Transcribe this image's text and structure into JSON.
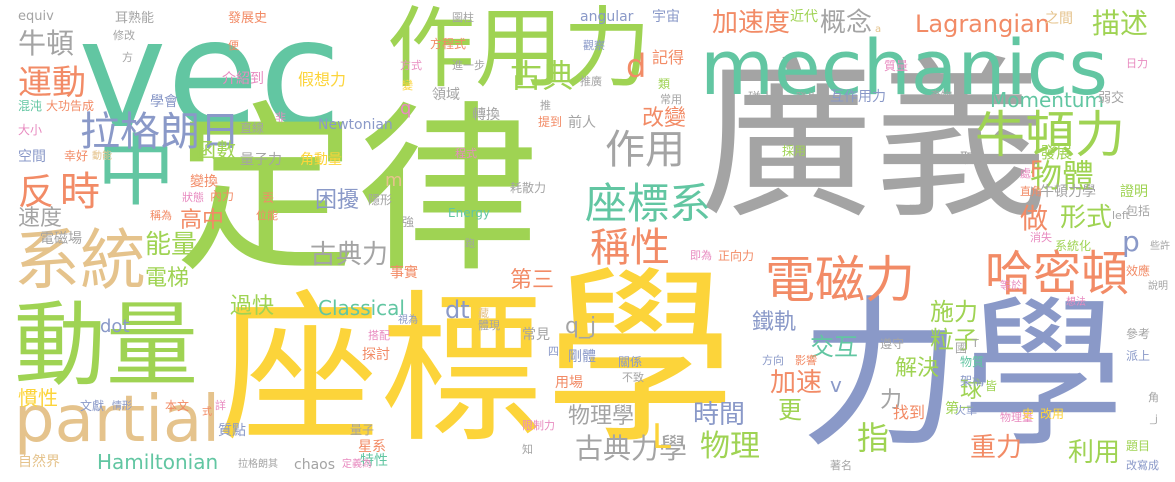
{
  "palette": {
    "green": "#9fd353",
    "yellow": "#fcd43a",
    "gray": "#a4a4a4",
    "slate": "#8a99c8",
    "teal": "#62c6a2",
    "orange": "#f28b66",
    "tan": "#e5c38c",
    "pink": "#e88bc0",
    "lime": "#a8d55b"
  },
  "words": [
    {
      "text": "vec",
      "color": "#62c6a2"
    },
    {
      "text": "定律",
      "color": "#9fd353"
    },
    {
      "text": "廣義",
      "color": "#a4a4a4"
    },
    {
      "text": "座標",
      "color": "#fcd43a"
    },
    {
      "text": "學",
      "color": "#fcd43a"
    },
    {
      "text": "力學",
      "color": "#8a99c8"
    },
    {
      "text": "作用力",
      "color": "#9fd353"
    },
    {
      "text": "mechanics",
      "color": "#62c6a2"
    },
    {
      "text": "動量",
      "color": "#9fd353"
    },
    {
      "text": "partial",
      "color": "#e5c38c"
    },
    {
      "text": "中",
      "color": "#62c6a2"
    },
    {
      "text": "系統",
      "color": "#e5c38c"
    },
    {
      "text": "牛頓力",
      "color": "#9fd353"
    },
    {
      "text": "哈密頓",
      "color": "#f28b66"
    },
    {
      "text": "電磁力",
      "color": "#f28b66"
    },
    {
      "text": "座標系",
      "color": "#62c6a2"
    },
    {
      "text": "稱性",
      "color": "#f28b66"
    },
    {
      "text": "作用",
      "color": "#a4a4a4"
    },
    {
      "text": "拉格朗日",
      "color": "#8a99c8"
    },
    {
      "text": "物體",
      "color": "#9fd353"
    },
    {
      "text": "古典力學",
      "color": "#a4a4a4"
    },
    {
      "text": "物理",
      "color": "#9fd353"
    },
    {
      "text": "時",
      "color": "#f28b66"
    },
    {
      "text": "反",
      "color": "#f28b66"
    },
    {
      "text": "運動",
      "color": "#f28b66"
    },
    {
      "text": "牛頓",
      "color": "#a4a4a4"
    },
    {
      "text": "古典",
      "color": "#9fd353"
    },
    {
      "text": "加速度",
      "color": "#f28b66"
    },
    {
      "text": "概念",
      "color": "#a4a4a4"
    },
    {
      "text": "Lagrangian",
      "color": "#f28b66"
    },
    {
      "text": "描述",
      "color": "#9fd353"
    },
    {
      "text": "d",
      "color": "#f28b66"
    },
    {
      "text": "Momentum",
      "color": "#62c6a2"
    },
    {
      "text": "Hamiltonian",
      "color": "#62c6a2"
    },
    {
      "text": "Classical",
      "color": "#62c6a2"
    },
    {
      "text": "利用",
      "color": "#9fd353"
    },
    {
      "text": "重力",
      "color": "#f28b66"
    },
    {
      "text": "時間",
      "color": "#8a99c8"
    },
    {
      "text": "指",
      "color": "#9fd353"
    },
    {
      "text": "加速",
      "color": "#f28b66"
    },
    {
      "text": "能量",
      "color": "#9fd353"
    },
    {
      "text": "古典力",
      "color": "#a4a4a4"
    },
    {
      "text": "速度",
      "color": "#a4a4a4"
    },
    {
      "text": "形式",
      "color": "#9fd353"
    },
    {
      "text": "做",
      "color": "#f28b66"
    },
    {
      "text": "F",
      "color": "#f28b66"
    },
    {
      "text": "p",
      "color": "#8a99c8"
    },
    {
      "text": "施力",
      "color": "#9fd353"
    },
    {
      "text": "粒子",
      "color": "#9fd353"
    },
    {
      "text": "解決",
      "color": "#9fd353"
    },
    {
      "text": "交互",
      "color": "#62c6a2"
    },
    {
      "text": "鐵軌",
      "color": "#8a99c8"
    },
    {
      "text": "改變",
      "color": "#f28b66"
    },
    {
      "text": "函數",
      "color": "#9fd353"
    },
    {
      "text": "困擾",
      "color": "#8a99c8"
    },
    {
      "text": "高中",
      "color": "#f28b66"
    },
    {
      "text": "電梯",
      "color": "#9fd353"
    },
    {
      "text": "過快",
      "color": "#9fd353"
    },
    {
      "text": "慣性",
      "color": "#fcd43a"
    },
    {
      "text": "物理學",
      "color": "#a4a4a4"
    },
    {
      "text": "第三",
      "color": "#f28b66"
    },
    {
      "text": "dt",
      "color": "#8a99c8"
    },
    {
      "text": "q_j",
      "color": "#a4a4a4"
    },
    {
      "text": "更",
      "color": "#9fd353"
    },
    {
      "text": "力",
      "color": "#a4a4a4"
    },
    {
      "text": "球",
      "color": "#9fd353"
    },
    {
      "text": "電磁場",
      "color": "#a4a4a4"
    },
    {
      "text": "dot",
      "color": "#8a99c8"
    },
    {
      "text": "m",
      "color": "#e5c38c"
    },
    {
      "text": "q",
      "color": "#e88bc0"
    },
    {
      "text": "v",
      "color": "#8a99c8"
    },
    {
      "text": "L",
      "color": "#fcd43a"
    },
    {
      "text": "第一",
      "color": "#9fd353"
    },
    {
      "text": "找到",
      "color": "#f28b66"
    },
    {
      "text": "牛頓力學",
      "color": "#a4a4a4"
    },
    {
      "text": "證明",
      "color": "#9fd353"
    },
    {
      "text": "發展",
      "color": "#9fd353"
    },
    {
      "text": "互作用力",
      "color": "#8a99c8"
    },
    {
      "text": "角動量",
      "color": "#fcd43a"
    },
    {
      "text": "量子力",
      "color": "#a4a4a4"
    },
    {
      "text": "假想力",
      "color": "#fcd43a"
    },
    {
      "text": "記得",
      "color": "#f28b66"
    },
    {
      "text": "介紹到",
      "color": "#e88bc0"
    },
    {
      "text": "領域",
      "color": "#a4a4a4"
    },
    {
      "text": "轉換",
      "color": "#a4a4a4"
    },
    {
      "text": "前人",
      "color": "#a4a4a4"
    },
    {
      "text": "Newtonian",
      "color": "#8a99c8"
    },
    {
      "text": "Energy",
      "color": "#62c6a2"
    },
    {
      "text": "chaos",
      "color": "#a4a4a4"
    },
    {
      "text": "angular",
      "color": "#8a99c8"
    },
    {
      "text": "宇宙",
      "color": "#8a99c8"
    },
    {
      "text": "近代",
      "color": "#9fd353"
    },
    {
      "text": "之間",
      "color": "#e5c38c"
    },
    {
      "text": "方程式",
      "color": "#f28b66"
    },
    {
      "text": "觀察",
      "color": "#8a99c8"
    },
    {
      "text": "推廣",
      "color": "#a4a4a4"
    },
    {
      "text": "碰上",
      "color": "#a4a4a4"
    },
    {
      "text": "發生",
      "color": "#a4a4a4"
    },
    {
      "text": "產物",
      "color": "#a4a4a4"
    },
    {
      "text": "弱交",
      "color": "#a4a4a4"
    },
    {
      "text": "質量",
      "color": "#e88bc0"
    },
    {
      "text": "日力",
      "color": "#e88bc0"
    },
    {
      "text": "發展史",
      "color": "#f28b66"
    },
    {
      "text": "耳熟能",
      "color": "#a4a4a4"
    },
    {
      "text": "圖柱",
      "color": "#a4a4a4"
    },
    {
      "text": "equiv",
      "color": "#a4a4a4"
    },
    {
      "text": "學會",
      "color": "#8a99c8"
    },
    {
      "text": "混沌",
      "color": "#62c6a2"
    },
    {
      "text": "大功告成",
      "color": "#f28b66"
    },
    {
      "text": "大小",
      "color": "#e88bc0"
    },
    {
      "text": "空間",
      "color": "#8a99c8"
    },
    {
      "text": "幸好",
      "color": "#f28b66"
    },
    {
      "text": "動能",
      "color": "#e5c38c"
    },
    {
      "text": "變換",
      "color": "#f28b66"
    },
    {
      "text": "直線",
      "color": "#a4a4a4"
    },
    {
      "text": "耗散力",
      "color": "#a4a4a4"
    },
    {
      "text": "採用",
      "color": "#9fd353"
    },
    {
      "text": "關係",
      "color": "#8a99c8"
    },
    {
      "text": "事實",
      "color": "#f28b66"
    },
    {
      "text": "正向力",
      "color": "#f28b66"
    },
    {
      "text": "系統化",
      "color": "#9fd353"
    },
    {
      "text": "效應",
      "color": "#f28b66"
    },
    {
      "text": "包括",
      "color": "#a4a4a4"
    },
    {
      "text": "遵守",
      "color": "#a4a4a4"
    },
    {
      "text": "參考",
      "color": "#a4a4a4"
    },
    {
      "text": "派上",
      "color": "#8a99c8"
    },
    {
      "text": "改寫成",
      "color": "#8a99c8"
    },
    {
      "text": "題目",
      "color": "#9fd353"
    },
    {
      "text": "物理量",
      "color": "#e88bc0"
    },
    {
      "text": "史",
      "color": "#fcd43a"
    },
    {
      "text": "改用",
      "color": "#fcd43a"
    },
    {
      "text": "著名",
      "color": "#a4a4a4"
    },
    {
      "text": "自然界",
      "color": "#e5c38c"
    },
    {
      "text": "文獻",
      "color": "#8a99c8"
    },
    {
      "text": "本文",
      "color": "#f28b66"
    },
    {
      "text": "質點",
      "color": "#8a99c8"
    },
    {
      "text": "量子",
      "color": "#a4a4a4"
    },
    {
      "text": "星系",
      "color": "#f28b66"
    },
    {
      "text": "特性",
      "color": "#62c6a2"
    },
    {
      "text": "定義為",
      "color": "#e88bc0"
    },
    {
      "text": "拉格朗其",
      "color": "#a4a4a4"
    },
    {
      "text": "探討",
      "color": "#f28b66"
    },
    {
      "text": "剛體",
      "color": "#8a99c8"
    },
    {
      "text": "用場",
      "color": "#f28b66"
    },
    {
      "text": "火車",
      "color": "#8a99c8"
    },
    {
      "text": "物質",
      "color": "#62c6a2"
    },
    {
      "text": "架構",
      "color": "#8a99c8"
    },
    {
      "text": "影響",
      "color": "#f28b66"
    },
    {
      "text": "方向",
      "color": "#8a99c8"
    },
    {
      "text": "消失",
      "color": "#e88bc0"
    },
    {
      "text": "直角",
      "color": "#f28b66"
    },
    {
      "text": "等於",
      "color": "#e88bc0"
    },
    {
      "text": "即為",
      "color": "#e88bc0"
    },
    {
      "text": "體現",
      "color": "#a4a4a4"
    },
    {
      "text": "隱形",
      "color": "#a4a4a4"
    },
    {
      "text": "內力",
      "color": "#f28b66"
    },
    {
      "text": "丟",
      "color": "#f28b66"
    },
    {
      "text": "強",
      "color": "#a4a4a4"
    },
    {
      "text": "位能",
      "color": "#f28b66"
    },
    {
      "text": "稱為",
      "color": "#f28b66"
    },
    {
      "text": "狀態",
      "color": "#e88bc0"
    },
    {
      "text": "搭配",
      "color": "#e88bc0"
    },
    {
      "text": "常見",
      "color": "#a4a4a4"
    },
    {
      "text": "不致",
      "color": "#a4a4a4"
    },
    {
      "text": "限制力",
      "color": "#e88bc0"
    },
    {
      "text": "程式",
      "color": "#e88bc0"
    },
    {
      "text": "提到",
      "color": "#f28b66"
    },
    {
      "text": "常用",
      "color": "#a4a4a4"
    },
    {
      "text": "推",
      "color": "#a4a4a4"
    },
    {
      "text": "非",
      "color": "#e88bc0"
    },
    {
      "text": "變",
      "color": "#fcd43a"
    },
    {
      "text": "方式",
      "color": "#e88bc0"
    },
    {
      "text": "進一步",
      "color": "#a4a4a4"
    },
    {
      "text": "便",
      "color": "#f28b66"
    },
    {
      "text": "修改",
      "color": "#a4a4a4"
    },
    {
      "text": "方",
      "color": "#a4a4a4"
    },
    {
      "text": "類",
      "color": "#9fd353"
    },
    {
      "text": "取",
      "color": "#a4a4a4"
    },
    {
      "text": "處",
      "color": "#e88bc0"
    },
    {
      "text": "說明",
      "color": "#a4a4a4"
    },
    {
      "text": "些許",
      "color": "#a4a4a4"
    },
    {
      "text": "想法",
      "color": "#e88bc0"
    },
    {
      "text": "left",
      "color": "#a4a4a4"
    },
    {
      "text": "情形",
      "color": "#8a99c8"
    },
    {
      "text": "詳",
      "color": "#e88bc0"
    },
    {
      "text": "式",
      "color": "#f28b66"
    },
    {
      "text": "知",
      "color": "#a4a4a4"
    },
    {
      "text": "跑",
      "color": "#a4a4a4"
    },
    {
      "text": "藏",
      "color": "#e5c38c"
    },
    {
      "text": "視為",
      "color": "#8a99c8"
    },
    {
      "text": "四",
      "color": "#8a99c8"
    },
    {
      "text": "國",
      "color": "#a4a4a4"
    },
    {
      "text": "皆",
      "color": "#9fd353"
    },
    {
      "text": "角",
      "color": "#a4a4a4"
    },
    {
      "text": "T",
      "color": "#a4a4a4"
    },
    {
      "text": "_j",
      "color": "#a4a4a4"
    },
    {
      "text": "a",
      "color": "#e5c38c"
    }
  ]
}
